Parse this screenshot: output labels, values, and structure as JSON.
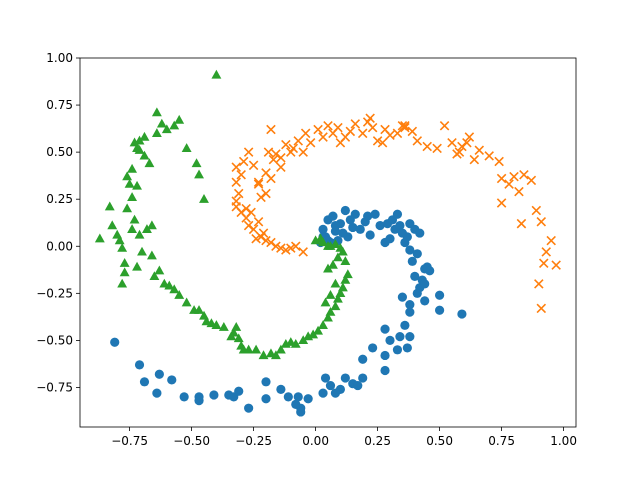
{
  "chart_data": {
    "type": "scatter",
    "title": "",
    "xlabel": "",
    "ylabel": "",
    "xlim": [
      -0.95,
      1.05
    ],
    "ylim": [
      -0.96,
      1.0
    ],
    "xticks": [
      -0.75,
      -0.5,
      -0.25,
      0.0,
      0.25,
      0.5,
      0.75,
      1.0
    ],
    "xtick_labels": [
      "−0.75",
      "−0.50",
      "−0.25",
      "0.00",
      "0.25",
      "0.50",
      "0.75",
      "1.00"
    ],
    "yticks": [
      -0.75,
      -0.5,
      -0.25,
      0.0,
      0.25,
      0.5,
      0.75,
      1.0
    ],
    "ytick_labels": [
      "−0.75",
      "−0.50",
      "−0.25",
      "0.00",
      "0.25",
      "0.50",
      "0.75",
      "1.00"
    ],
    "grid": false,
    "legend": "none",
    "series": [
      {
        "marker": "circle",
        "color": "#1f77b4",
        "points": [
          [
            -0.81,
            -0.51
          ],
          [
            -0.71,
            -0.63
          ],
          [
            -0.69,
            -0.72
          ],
          [
            -0.64,
            -0.78
          ],
          [
            -0.63,
            -0.68
          ],
          [
            -0.58,
            -0.71
          ],
          [
            -0.53,
            -0.8
          ],
          [
            -0.47,
            -0.82
          ],
          [
            -0.47,
            -0.8
          ],
          [
            -0.41,
            -0.79
          ],
          [
            -0.35,
            -0.79
          ],
          [
            -0.33,
            -0.8
          ],
          [
            -0.31,
            -0.77
          ],
          [
            -0.27,
            -0.86
          ],
          [
            -0.2,
            -0.72
          ],
          [
            -0.2,
            -0.81
          ],
          [
            -0.14,
            -0.76
          ],
          [
            -0.11,
            -0.8
          ],
          [
            -0.08,
            -0.84
          ],
          [
            -0.07,
            -0.8
          ],
          [
            -0.06,
            -0.86
          ],
          [
            -0.06,
            -0.88
          ],
          [
            -0.03,
            -0.81
          ],
          [
            0.03,
            -0.78
          ],
          [
            0.04,
            -0.7
          ],
          [
            0.06,
            -0.74
          ],
          [
            0.08,
            -0.78
          ],
          [
            0.1,
            -0.76
          ],
          [
            0.12,
            -0.7
          ],
          [
            0.15,
            -0.73
          ],
          [
            0.17,
            -0.74
          ],
          [
            0.19,
            -0.7
          ],
          [
            0.19,
            -0.6
          ],
          [
            0.23,
            -0.54
          ],
          [
            0.28,
            -0.66
          ],
          [
            0.28,
            -0.44
          ],
          [
            0.33,
            -0.55
          ],
          [
            0.35,
            -0.27
          ],
          [
            0.37,
            -0.54
          ],
          [
            0.38,
            -0.48
          ],
          [
            0.38,
            -0.35
          ],
          [
            0.4,
            -0.16
          ],
          [
            0.41,
            -0.25
          ],
          [
            0.42,
            -0.22
          ],
          [
            0.44,
            -0.29
          ],
          [
            0.45,
            -0.11
          ],
          [
            0.46,
            -0.13
          ],
          [
            0.5,
            -0.26
          ],
          [
            0.5,
            -0.34
          ],
          [
            0.59,
            -0.36
          ],
          [
            0.02,
            0.02
          ],
          [
            0.03,
            0.05
          ],
          [
            0.03,
            0.09
          ],
          [
            0.04,
            0.05
          ],
          [
            0.05,
            0.14
          ],
          [
            0.06,
            0.02
          ],
          [
            0.07,
            0.16
          ],
          [
            0.08,
            0.08
          ],
          [
            0.09,
            0.03
          ],
          [
            0.1,
            0.12
          ],
          [
            0.12,
            0.19
          ],
          [
            0.13,
            0.05
          ],
          [
            0.15,
            0.1
          ],
          [
            0.16,
            0.17
          ],
          [
            0.18,
            0.09
          ],
          [
            0.2,
            0.13
          ],
          [
            0.21,
            0.16
          ],
          [
            0.22,
            0.06
          ],
          [
            0.24,
            0.17
          ],
          [
            0.26,
            0.11
          ],
          [
            0.28,
            0.02
          ],
          [
            0.29,
            0.12
          ],
          [
            0.3,
            0.04
          ],
          [
            0.31,
            0.14
          ],
          [
            0.32,
            0.09
          ],
          [
            0.33,
            0.17
          ],
          [
            0.34,
            0.11
          ],
          [
            0.35,
            0.07
          ],
          [
            0.36,
            0.02
          ],
          [
            0.37,
            0.05
          ],
          [
            0.38,
            -0.02
          ],
          [
            0.38,
            0.12
          ],
          [
            0.39,
            -0.08
          ],
          [
            0.4,
            0.09
          ],
          [
            0.41,
            -0.04
          ],
          [
            0.42,
            0.07
          ],
          [
            0.43,
            -0.18
          ],
          [
            0.44,
            -0.12
          ],
          [
            0.38,
            -0.31
          ],
          [
            0.36,
            -0.42
          ],
          [
            0.34,
            -0.48
          ],
          [
            0.28,
            -0.58
          ],
          [
            0.3,
            -0.5
          ],
          [
            0.44,
            -0.2
          ],
          [
            0.05,
            0.03
          ],
          [
            0.08,
            0.11
          ],
          [
            0.11,
            0.07
          ],
          [
            0.14,
            0.14
          ]
        ]
      },
      {
        "marker": "x",
        "color": "#ff7f0e",
        "points": [
          [
            -0.05,
            -0.03
          ],
          [
            -0.08,
            0.0
          ],
          [
            -0.1,
            -0.01
          ],
          [
            -0.12,
            -0.02
          ],
          [
            -0.14,
            -0.01
          ],
          [
            -0.16,
            0.0
          ],
          [
            -0.18,
            0.02
          ],
          [
            -0.2,
            0.03
          ],
          [
            -0.22,
            0.05
          ],
          [
            -0.24,
            0.04
          ],
          [
            -0.21,
            0.07
          ],
          [
            -0.25,
            0.09
          ],
          [
            -0.27,
            0.11
          ],
          [
            -0.23,
            0.13
          ],
          [
            -0.28,
            0.15
          ],
          [
            -0.3,
            0.18
          ],
          [
            -0.26,
            0.18
          ],
          [
            -0.32,
            0.21
          ],
          [
            -0.32,
            0.24
          ],
          [
            -0.31,
            0.28
          ],
          [
            -0.32,
            0.34
          ],
          [
            -0.3,
            0.38
          ],
          [
            -0.32,
            0.42
          ],
          [
            -0.29,
            0.45
          ],
          [
            -0.25,
            0.43
          ],
          [
            -0.27,
            0.5
          ],
          [
            -0.23,
            0.33
          ],
          [
            -0.23,
            0.34
          ],
          [
            -0.22,
            0.26
          ],
          [
            -0.2,
            0.28
          ],
          [
            -0.2,
            0.39
          ],
          [
            -0.18,
            0.36
          ],
          [
            -0.19,
            0.5
          ],
          [
            -0.17,
            0.46
          ],
          [
            -0.14,
            0.42
          ],
          [
            -0.14,
            0.47
          ],
          [
            -0.12,
            0.54
          ],
          [
            -0.1,
            0.5
          ],
          [
            -0.09,
            0.52
          ],
          [
            -0.07,
            0.56
          ],
          [
            -0.05,
            0.5
          ],
          [
            -0.04,
            0.6
          ],
          [
            -0.02,
            0.55
          ],
          [
            0.01,
            0.62
          ],
          [
            0.03,
            0.58
          ],
          [
            0.05,
            0.64
          ],
          [
            0.07,
            0.6
          ],
          [
            0.09,
            0.63
          ],
          [
            0.1,
            0.55
          ],
          [
            0.12,
            0.58
          ],
          [
            0.14,
            0.61
          ],
          [
            0.16,
            0.65
          ],
          [
            0.19,
            0.6
          ],
          [
            0.21,
            0.66
          ],
          [
            0.23,
            0.63
          ],
          [
            0.25,
            0.56
          ],
          [
            0.27,
            0.55
          ],
          [
            0.3,
            0.59
          ],
          [
            0.33,
            0.6
          ],
          [
            0.35,
            0.64
          ],
          [
            0.36,
            0.63
          ],
          [
            0.39,
            0.61
          ],
          [
            0.41,
            0.56
          ],
          [
            0.45,
            0.53
          ],
          [
            0.49,
            0.52
          ],
          [
            0.52,
            0.64
          ],
          [
            0.55,
            0.55
          ],
          [
            0.57,
            0.49
          ],
          [
            0.58,
            0.5
          ],
          [
            0.59,
            0.53
          ],
          [
            0.61,
            0.55
          ],
          [
            0.62,
            0.58
          ],
          [
            0.64,
            0.46
          ],
          [
            0.66,
            0.51
          ],
          [
            0.7,
            0.48
          ],
          [
            0.74,
            0.45
          ],
          [
            0.75,
            0.36
          ],
          [
            0.75,
            0.23
          ],
          [
            0.78,
            0.33
          ],
          [
            0.8,
            0.37
          ],
          [
            0.82,
            0.29
          ],
          [
            0.83,
            0.12
          ],
          [
            0.84,
            0.38
          ],
          [
            0.87,
            0.35
          ],
          [
            0.89,
            0.19
          ],
          [
            0.91,
            0.13
          ],
          [
            0.93,
            -0.03
          ],
          [
            0.95,
            0.03
          ],
          [
            0.97,
            -0.1
          ],
          [
            0.92,
            -0.09
          ],
          [
            0.9,
            -0.2
          ],
          [
            0.91,
            -0.33
          ],
          [
            0.36,
            0.64
          ],
          [
            -0.16,
            0.49
          ],
          [
            -0.18,
            0.62
          ],
          [
            0.22,
            0.68
          ],
          [
            0.28,
            0.62
          ],
          [
            -0.28,
            0.2
          ]
        ]
      },
      {
        "marker": "triangle",
        "color": "#2ca02c",
        "points": [
          [
            -0.4,
            0.91
          ],
          [
            -0.87,
            0.04
          ],
          [
            -0.83,
            0.21
          ],
          [
            -0.82,
            0.11
          ],
          [
            -0.79,
            0.03
          ],
          [
            -0.8,
            0.06
          ],
          [
            -0.78,
            -0.01
          ],
          [
            -0.77,
            -0.09
          ],
          [
            -0.76,
            0.2
          ],
          [
            -0.75,
            0.33
          ],
          [
            -0.74,
            0.26
          ],
          [
            -0.73,
            0.14
          ],
          [
            -0.72,
            0.32
          ],
          [
            -0.72,
            -0.11
          ],
          [
            -0.7,
            -0.03
          ],
          [
            -0.71,
            0.06
          ],
          [
            -0.68,
            0.09
          ],
          [
            -0.66,
            0.11
          ],
          [
            -0.66,
            -0.05
          ],
          [
            -0.65,
            -0.16
          ],
          [
            -0.63,
            -0.13
          ],
          [
            -0.61,
            -0.2
          ],
          [
            -0.59,
            -0.21
          ],
          [
            -0.57,
            -0.23
          ],
          [
            -0.55,
            -0.26
          ],
          [
            -0.52,
            -0.3
          ],
          [
            -0.49,
            -0.34
          ],
          [
            -0.47,
            -0.34
          ],
          [
            -0.45,
            -0.37
          ],
          [
            -0.44,
            -0.4
          ],
          [
            -0.42,
            -0.41
          ],
          [
            -0.4,
            -0.42
          ],
          [
            -0.37,
            -0.43
          ],
          [
            -0.34,
            -0.48
          ],
          [
            -0.33,
            -0.46
          ],
          [
            -0.32,
            -0.43
          ],
          [
            -0.31,
            -0.49
          ],
          [
            -0.3,
            -0.53
          ],
          [
            -0.29,
            -0.55
          ],
          [
            -0.27,
            -0.55
          ],
          [
            -0.24,
            -0.55
          ],
          [
            -0.21,
            -0.58
          ],
          [
            -0.18,
            -0.57
          ],
          [
            -0.16,
            -0.58
          ],
          [
            -0.14,
            -0.55
          ],
          [
            -0.12,
            -0.52
          ],
          [
            -0.1,
            -0.51
          ],
          [
            -0.08,
            -0.52
          ],
          [
            -0.05,
            -0.5
          ],
          [
            -0.03,
            -0.48
          ],
          [
            -0.01,
            -0.47
          ],
          [
            0.01,
            -0.45
          ],
          [
            0.03,
            -0.42
          ],
          [
            0.05,
            -0.38
          ],
          [
            0.06,
            -0.35
          ],
          [
            0.08,
            -0.32
          ],
          [
            0.09,
            -0.28
          ],
          [
            0.1,
            -0.25
          ],
          [
            0.11,
            -0.22
          ],
          [
            0.12,
            -0.18
          ],
          [
            0.13,
            -0.15
          ],
          [
            0.12,
            -0.08
          ],
          [
            0.11,
            -0.03
          ],
          [
            0.1,
            -0.01
          ],
          [
            0.08,
            0.01
          ],
          [
            0.06,
            0.0
          ],
          [
            0.05,
            0.0
          ],
          [
            0.03,
            0.02
          ],
          [
            0.02,
            0.04
          ],
          [
            0.0,
            0.03
          ],
          [
            0.09,
            -0.06
          ],
          [
            0.07,
            -0.1
          ],
          [
            0.05,
            -0.12
          ],
          [
            0.08,
            -0.2
          ],
          [
            0.06,
            -0.26
          ],
          [
            0.04,
            -0.3
          ],
          [
            -0.64,
            0.71
          ],
          [
            -0.62,
            0.65
          ],
          [
            -0.64,
            0.6
          ],
          [
            -0.6,
            0.62
          ],
          [
            -0.57,
            0.64
          ],
          [
            -0.55,
            0.67
          ],
          [
            -0.48,
            0.44
          ],
          [
            -0.47,
            0.38
          ],
          [
            -0.45,
            0.25
          ],
          [
            -0.52,
            0.52
          ],
          [
            -0.67,
            0.44
          ],
          [
            -0.69,
            0.48
          ],
          [
            -0.71,
            0.51
          ],
          [
            -0.69,
            0.58
          ],
          [
            -0.71,
            0.56
          ],
          [
            -0.73,
            0.55
          ],
          [
            -0.72,
            0.52
          ],
          [
            -0.74,
            0.41
          ],
          [
            -0.76,
            0.37
          ],
          [
            -0.74,
            0.09
          ],
          [
            -0.77,
            -0.14
          ],
          [
            -0.78,
            -0.2
          ]
        ]
      }
    ]
  }
}
